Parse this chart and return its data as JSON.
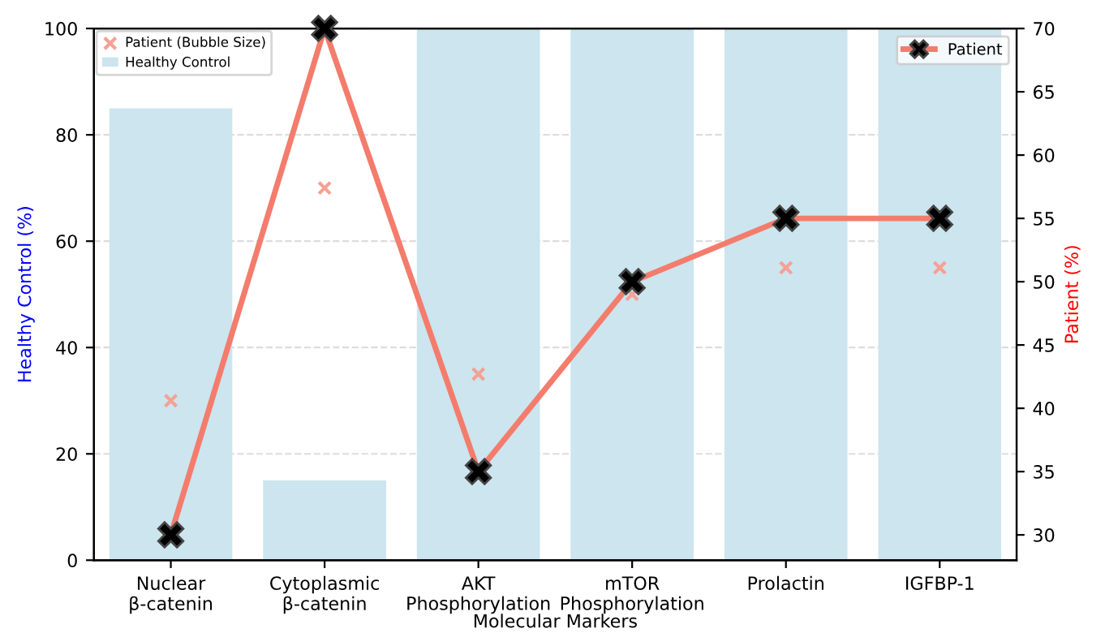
{
  "chart_data": {
    "type": "bar",
    "xlabel": "Molecular Markers",
    "ylabel": "Healthy Control (%)",
    "y2label": "Patient (%)",
    "categories": [
      "Nuclear\nβ-catenin",
      "Cytoplasmic\nβ-catenin",
      "AKT\nPhosphorylation",
      "mTOR\nPhosphorylation",
      "Prolactin",
      "IGFBP-1"
    ],
    "series": [
      {
        "name": "Patient (Bubble Size)",
        "type": "scatter",
        "marker": "cross",
        "color": "#f4a196",
        "values": [
          30,
          70,
          35,
          50,
          55,
          55
        ]
      },
      {
        "name": "Healthy Control",
        "color": "#cce5ee",
        "values": [
          85,
          15,
          100,
          100,
          100,
          100
        ]
      },
      {
        "name": "Patient",
        "type": "line",
        "axis": "y2",
        "marker": "cross",
        "color": "#f47c6c",
        "values": [
          30,
          70,
          35,
          50,
          55,
          55
        ]
      }
    ],
    "ylim": [
      0,
      100
    ],
    "yticks": [
      0,
      20,
      40,
      60,
      80,
      100
    ],
    "y2lim": [
      28,
      70
    ],
    "y2ticks": [
      30,
      35,
      40,
      45,
      50,
      55,
      60,
      65,
      70
    ],
    "grid": "y",
    "legend": "top left"
  }
}
